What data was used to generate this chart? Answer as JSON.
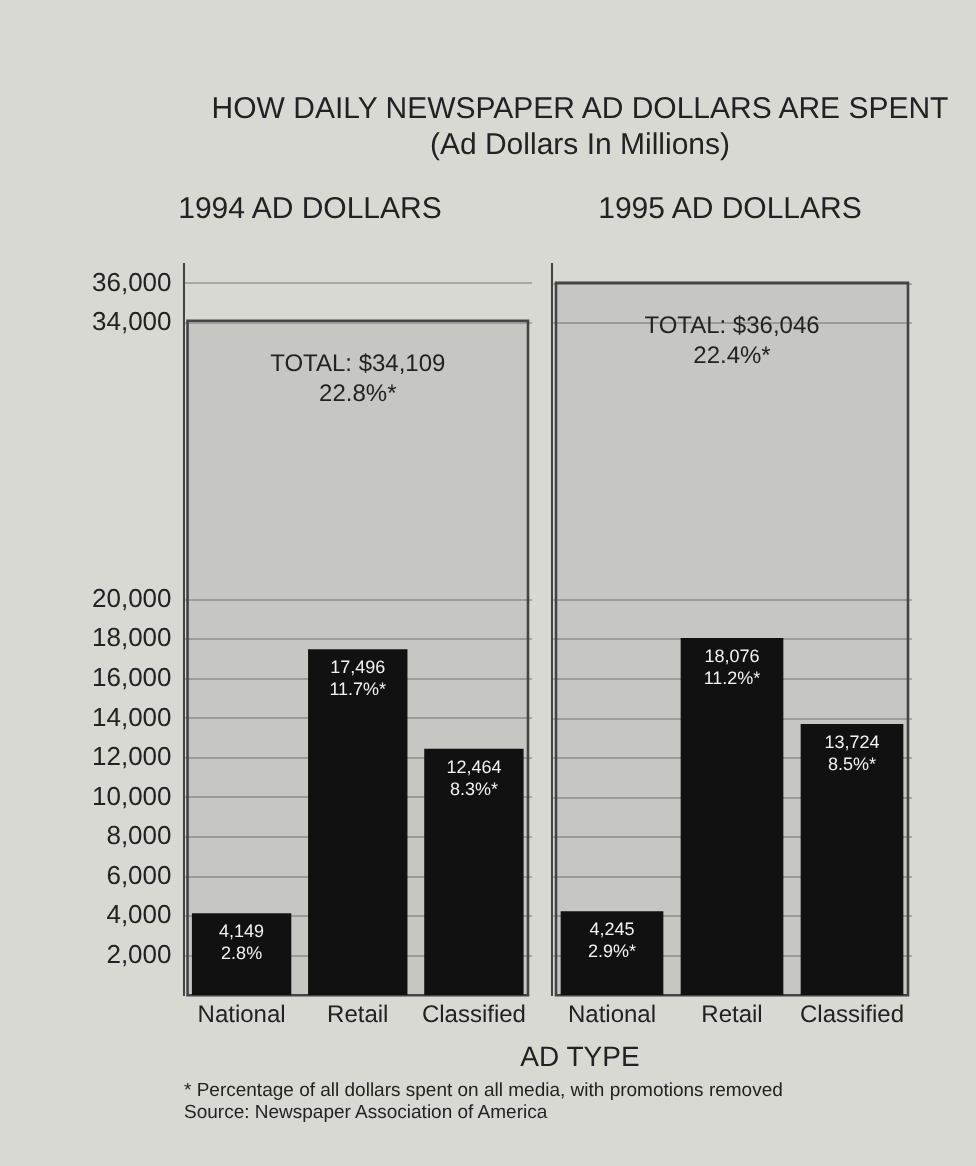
{
  "chart_data": [
    {
      "type": "bar",
      "title": "HOW DAILY NEWSPAPER AD DOLLARS ARE SPENT (Ad Dollars In Millions)",
      "subtitle": "1994 AD DOLLARS",
      "xlabel": "AD TYPE",
      "categories": [
        "National",
        "Retail",
        "Classified"
      ],
      "values": [
        4149,
        17496,
        12464
      ],
      "color": "#111111",
      "value_labels": [
        "4,149\n2.8%",
        "17,496\n11.7%*",
        "12,464\n8.3%*"
      ],
      "ylim": [
        0,
        37000
      ],
      "yticks": [
        {
          "value": 2000,
          "label": "2,000"
        },
        {
          "value": 4000,
          "label": "4,000"
        },
        {
          "value": 6000,
          "label": "6,000"
        },
        {
          "value": 8000,
          "label": "8,000"
        },
        {
          "value": 10000,
          "label": "10,000"
        },
        {
          "value": 12000,
          "label": "12,000"
        },
        {
          "value": 14000,
          "label": "14,000"
        },
        {
          "value": 16000,
          "label": "16,000"
        },
        {
          "value": 18000,
          "label": "18,000"
        },
        {
          "value": 20000,
          "label": "20,000"
        },
        {
          "value": 34000,
          "label": "34,000"
        },
        {
          "value": 36000,
          "label": "36,000"
        }
      ],
      "bands": [
        {
          "axis": "y",
          "from": 0,
          "to": 34109,
          "label": "TOTAL: $34,109\n22.8%*",
          "color": "#444444"
        }
      ],
      "grid": "y",
      "annotations": [
        "* Percentage of all dollars spent on all media, with promotions removed",
        "Source: Newspaper Association of America"
      ]
    },
    {
      "type": "bar",
      "subtitle": "1995 AD DOLLARS",
      "categories": [
        "National",
        "Retail",
        "Classified"
      ],
      "values": [
        4245,
        18076,
        13724
      ],
      "color": "#111111",
      "value_labels": [
        "4,245\n2.9%*",
        "18,076\n11.2%*",
        "13,724\n8.5%*"
      ],
      "ylim": [
        0,
        37000
      ],
      "yticks": [
        2000,
        4000,
        6000,
        8000,
        10000,
        12000,
        14000,
        16000,
        18000,
        20000,
        34000,
        36000
      ],
      "bands": [
        {
          "axis": "y",
          "from": 0,
          "to": 36046,
          "label": "TOTAL: $36,046\n22.4%*",
          "color": "#444444"
        }
      ],
      "grid": "y",
      "tick_labels": "x"
    }
  ]
}
